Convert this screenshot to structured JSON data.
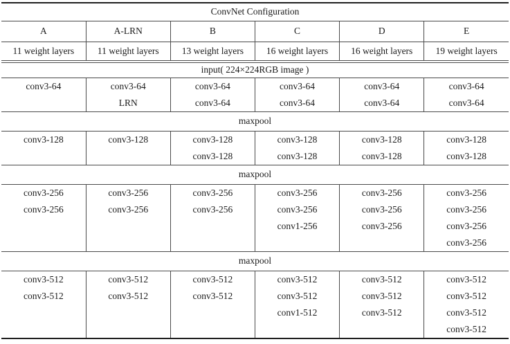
{
  "table": {
    "title": "ConvNet Configuration",
    "columns": [
      "A",
      "A-LRN",
      "B",
      "C",
      "D",
      "E"
    ],
    "weight_layers": [
      "11 weight layers",
      "11 weight layers",
      "13 weight layers",
      "16 weight layers",
      "16 weight layers",
      "19 weight layers"
    ],
    "input_label": "input( 224×224RGB image )",
    "maxpool_label": "maxpool",
    "blocks": [
      {
        "name": "conv-block-64",
        "rows": [
          [
            "conv3-64",
            "conv3-64",
            "conv3-64",
            "conv3-64",
            "conv3-64",
            "conv3-64"
          ],
          [
            "",
            "LRN",
            "conv3-64",
            "conv3-64",
            "conv3-64",
            "conv3-64"
          ]
        ]
      },
      {
        "name": "conv-block-128",
        "rows": [
          [
            "conv3-128",
            "conv3-128",
            "conv3-128",
            "conv3-128",
            "conv3-128",
            "conv3-128"
          ],
          [
            "",
            "",
            "conv3-128",
            "conv3-128",
            "conv3-128",
            "conv3-128"
          ]
        ]
      },
      {
        "name": "conv-block-256",
        "rows": [
          [
            "conv3-256",
            "conv3-256",
            "conv3-256",
            "conv3-256",
            "conv3-256",
            "conv3-256"
          ],
          [
            "conv3-256",
            "conv3-256",
            "conv3-256",
            "conv3-256",
            "conv3-256",
            "conv3-256"
          ],
          [
            "",
            "",
            "",
            "conv1-256",
            "conv3-256",
            "conv3-256"
          ],
          [
            "",
            "",
            "",
            "",
            "",
            "conv3-256"
          ]
        ]
      },
      {
        "name": "conv-block-512",
        "rows": [
          [
            "conv3-512",
            "conv3-512",
            "conv3-512",
            "conv3-512",
            "conv3-512",
            "conv3-512"
          ],
          [
            "conv3-512",
            "conv3-512",
            "conv3-512",
            "conv3-512",
            "conv3-512",
            "conv3-512"
          ],
          [
            "",
            "",
            "",
            "conv1-512",
            "conv3-512",
            "conv3-512"
          ],
          [
            "",
            "",
            "",
            "",
            "",
            "conv3-512"
          ]
        ]
      }
    ]
  },
  "colors": {
    "thin_rule": "#4a4a4a",
    "thick_rule": "#1f1f1f",
    "text": "#1a1a1a",
    "background": "#ffffff"
  }
}
